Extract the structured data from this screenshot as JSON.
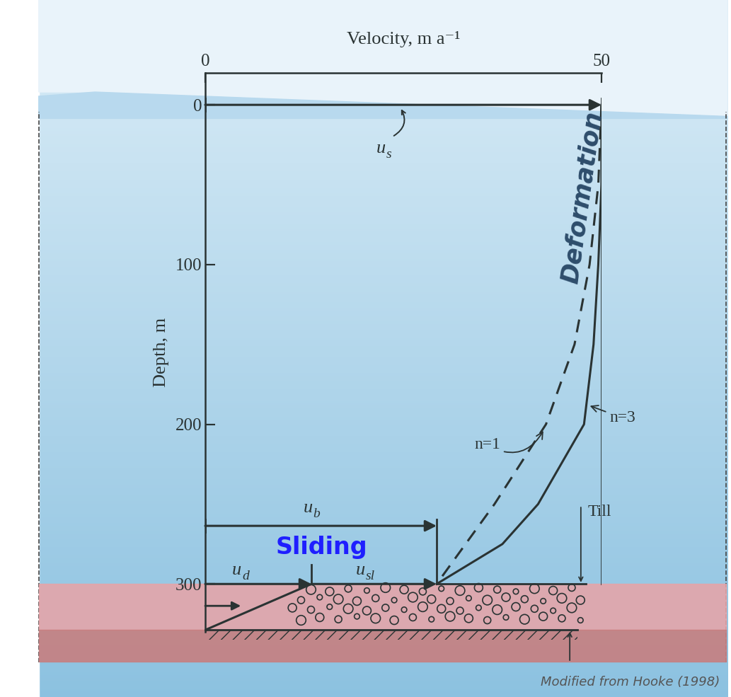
{
  "chart_data": {
    "type": "line",
    "xlabel": "Velocity, m a⁻¹",
    "ylabel": "Depth, m",
    "xlim": [
      0,
      50
    ],
    "xticks": [
      0,
      50
    ],
    "ylim": [
      330,
      -20
    ],
    "yticks": [
      0,
      100,
      200,
      300
    ],
    "series": [
      {
        "color": "#2a3333",
        "line_style": "solid",
        "x": [
          50,
          50,
          49.6,
          49,
          47.8,
          42,
          37.5,
          29.2
        ],
        "values": [
          0,
          50,
          100,
          150,
          200,
          250,
          275,
          300
        ]
      },
      {
        "color": "#2a3333",
        "line_style": "dashed",
        "x": [
          50,
          49.6,
          48.5,
          46.6,
          43,
          36.5,
          29.2
        ],
        "values": [
          0,
          50,
          100,
          150,
          200,
          250,
          300
        ]
      }
    ],
    "velocity_arrows": [
      {
        "symbol": "u",
        "subscript": "s",
        "value": 50,
        "depth": 0
      },
      {
        "symbol": "u",
        "subscript": "b",
        "value": 29.2,
        "depth": 263.6
      },
      {
        "symbol": "u",
        "subscript": "d",
        "value": 13.4,
        "depth": 300
      },
      {
        "symbol": "u",
        "subscript": "sl",
        "value": 29.2,
        "depth": 300
      }
    ],
    "till_profile": {
      "x": [
        0,
        13.4
      ],
      "values": [
        328.8,
        300
      ]
    },
    "bed_arrow": {
      "value": 4.5,
      "depth": 313.7
    },
    "annotations": {
      "deformation": "Deformation",
      "sliding": "Sliding",
      "n1": "n=1",
      "n3": "n=3",
      "till": "Till",
      "source": "Modified from Hooke (1998)"
    }
  }
}
